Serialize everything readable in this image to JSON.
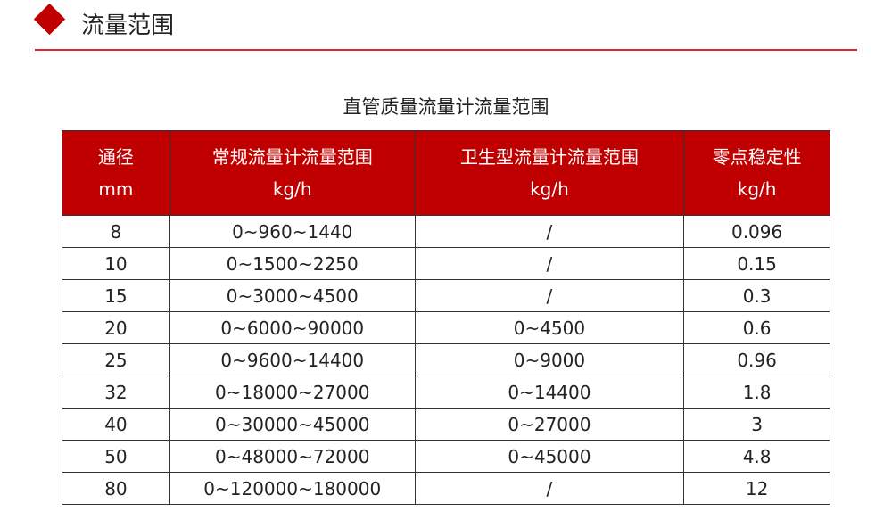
{
  "section": {
    "title": "流量范围",
    "accent": "#c00000"
  },
  "table": {
    "caption": "直管质量流量计流量范围",
    "headers": [
      {
        "label": "通径",
        "unit": "mm"
      },
      {
        "label": "常规流量计流量范围",
        "unit": "kg/h"
      },
      {
        "label": "卫生型流量计流量范围",
        "unit": "kg/h"
      },
      {
        "label": "零点稳定性",
        "unit": "kg/h"
      }
    ],
    "rows": [
      [
        "8",
        "0~960~1440",
        "/",
        "0.096"
      ],
      [
        "10",
        "0~1500~2250",
        "/",
        "0.15"
      ],
      [
        "15",
        "0~3000~4500",
        "/",
        "0.3"
      ],
      [
        "20",
        "0~6000~90000",
        "0~4500",
        "0.6"
      ],
      [
        "25",
        "0~9600~14400",
        "0~9000",
        "0.96"
      ],
      [
        "32",
        "0~18000~27000",
        "0~14400",
        "1.8"
      ],
      [
        "40",
        "0~30000~45000",
        "0~27000",
        "3"
      ],
      [
        "50",
        "0~48000~72000",
        "0~45000",
        "4.8"
      ],
      [
        "80",
        "0~120000~180000",
        "/",
        "12"
      ]
    ]
  }
}
